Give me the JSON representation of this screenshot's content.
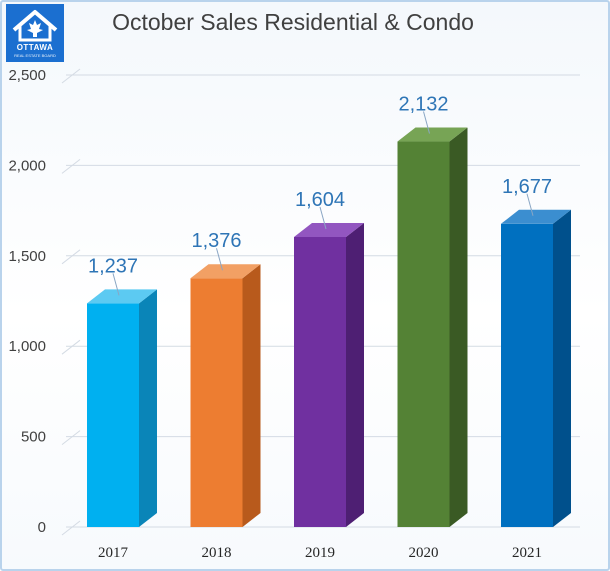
{
  "logo": {
    "name": "OTTAWA",
    "sub": "REAL ESTATE BOARD"
  },
  "chart_data": {
    "type": "bar",
    "title": "October Sales Residential & Condo",
    "categories": [
      "2017",
      "2018",
      "2019",
      "2020",
      "2021"
    ],
    "values": [
      1237,
      1376,
      1604,
      2132,
      1677
    ],
    "value_labels": [
      "1,237",
      "1,376",
      "1,604",
      "2,132",
      "1,677"
    ],
    "ylim": [
      0,
      2500
    ],
    "yticks": [
      0,
      500,
      1000,
      1500,
      2000,
      2500
    ],
    "ytick_labels": [
      "0",
      "500",
      "1,000",
      "1,500",
      "2,000",
      "2,500"
    ],
    "xlabel": "",
    "ylabel": "",
    "grid": true,
    "style": "3d-bars",
    "colors": [
      "#00b0f0",
      "#ed7d31",
      "#7030a0",
      "#548235",
      "#0070c0"
    ],
    "side_colors": [
      "#0a85b8",
      "#b85a1c",
      "#4e1f73",
      "#3a5a24",
      "#00508c"
    ],
    "top_colors": [
      "#5ccaf2",
      "#f2a064",
      "#9256c0",
      "#77a455",
      "#3b8ed0"
    ],
    "label_color": "#2e75b6"
  }
}
